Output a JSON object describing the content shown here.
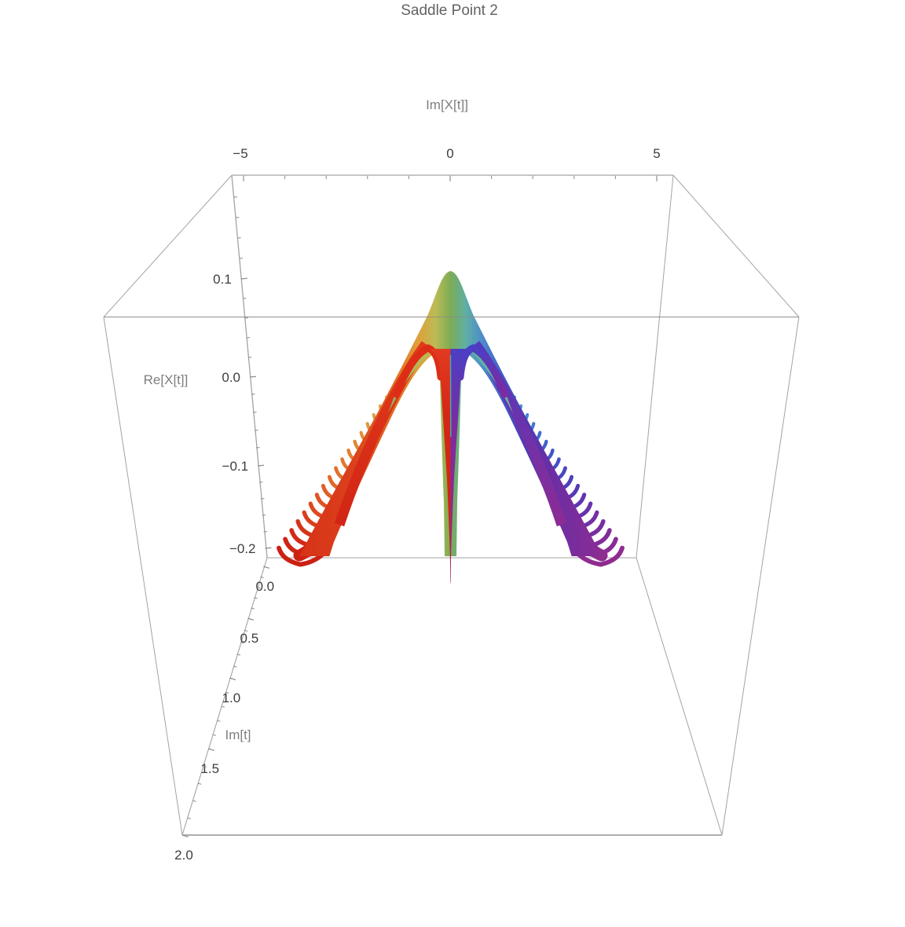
{
  "title": "Saddle Point 2",
  "axes": {
    "im_x": {
      "label": "Im[X[t]]",
      "ticks": [
        "−5",
        "0",
        "5"
      ],
      "range": [
        -5,
        5
      ]
    },
    "re_x": {
      "label": "Re[X[t]]",
      "ticks": [
        "0.1",
        "0.0",
        "−0.1",
        "−0.2"
      ],
      "range": [
        -0.22,
        0.14
      ]
    },
    "im_t": {
      "label": "Im[t]",
      "ticks": [
        "0.0",
        "0.5",
        "1.0",
        "1.5",
        "2.0"
      ],
      "range": [
        0,
        2
      ]
    }
  },
  "chart_data": {
    "type": "line",
    "title": "Saddle Point 2",
    "xlabel": "Im[X[t]]",
    "ylabel": "Re[X[t]]",
    "zlabel": "Im[t]",
    "x_range": [
      -5,
      5
    ],
    "y_ticks": [
      0.1,
      0.0,
      -0.1,
      -0.2
    ],
    "z_ticks": [
      0.0,
      0.5,
      1.0,
      1.5,
      2.0
    ],
    "grid": false,
    "legend": "none",
    "projection": "3d-perspective-box",
    "series": [
      {
        "name": "left-wing-hooks",
        "n_curves": 21,
        "description": "family of U-shaped descent paths, stacked from Im[t]=2 (front, red) to Im[t]=0 (back, gold)",
        "im_x_extent": [
          -4.15,
          -0.6
        ],
        "re_x_bottom": -0.22,
        "color_ramp": "red-to-gold"
      },
      {
        "name": "right-wing-hooks",
        "n_curves": 21,
        "description": "mirror family, from Im[t]=2 (front, magenta-purple) to Im[t]=0 (back, light blue)",
        "im_x_extent": [
          0.6,
          4.15
        ],
        "re_x_bottom": -0.22,
        "color_ramp": "purple-to-lightblue"
      },
      {
        "name": "central-peak-bundle",
        "description": "dense bundle forming a rainbow tent with two hollow arch windows",
        "apex": {
          "im_x": 0.0,
          "re_x": 0.11,
          "color": "green"
        },
        "arch_window_top_re_x": 0.035,
        "spike": {
          "im_x": 0.0,
          "re_x_min": -0.245,
          "colors": [
            "red",
            "purple"
          ]
        }
      }
    ],
    "palette": {
      "tent_stops": [
        [
          0.0,
          "#D73018"
        ],
        [
          0.19,
          "#DB411C"
        ],
        [
          0.315,
          "#E06A22"
        ],
        [
          0.395,
          "#DFA03A"
        ],
        [
          0.451,
          "#BDBB54"
        ],
        [
          0.5,
          "#7CAC55"
        ],
        [
          0.548,
          "#5FAFA4"
        ],
        [
          0.602,
          "#4C8CCB"
        ],
        [
          0.667,
          "#4159C6"
        ],
        [
          0.738,
          "#4B3BB4"
        ],
        [
          0.82,
          "#6A2EA4"
        ],
        [
          1.0,
          "#8E2C92"
        ]
      ],
      "left_hook_ramp": [
        "#CC2015",
        "#D42D18",
        "#DC4A1E",
        "#E06425",
        "#E0782D",
        "#DF8C37",
        "#DDA041",
        "#D9B04B",
        "#D8B64F"
      ],
      "right_hook_ramp": [
        "#8F2B91",
        "#7F2D9B",
        "#6D31A7",
        "#5937B5",
        "#4944C1",
        "#4156CA",
        "#446ED0",
        "#4E89D1",
        "#5AA0CD",
        "#65ADC9"
      ],
      "left_band": [
        "#E0521E",
        "#D52A16",
        "#CE2114"
      ],
      "right_band": [
        "#4C3DBE",
        "#7E2B9E",
        "#8E2C90"
      ],
      "left_arch": "#DE2D16",
      "right_arch_top": "#4B3FC4",
      "right_arch_bottom": "#7C2BA0",
      "left_wedge": [
        "#B9BD5A",
        "#8FB457"
      ],
      "right_wedge": [
        "#5FB0A2",
        "#74B49C"
      ],
      "left_column": [
        "#E23A20",
        "#D42717",
        "#CC2214"
      ],
      "right_column": [
        "#4B3FC4",
        "#7E2B9E",
        "#8E2C90",
        "#7A2BA2"
      ],
      "box_edge": "#A3A3A3",
      "tick_color": "#8C8C8C"
    }
  }
}
